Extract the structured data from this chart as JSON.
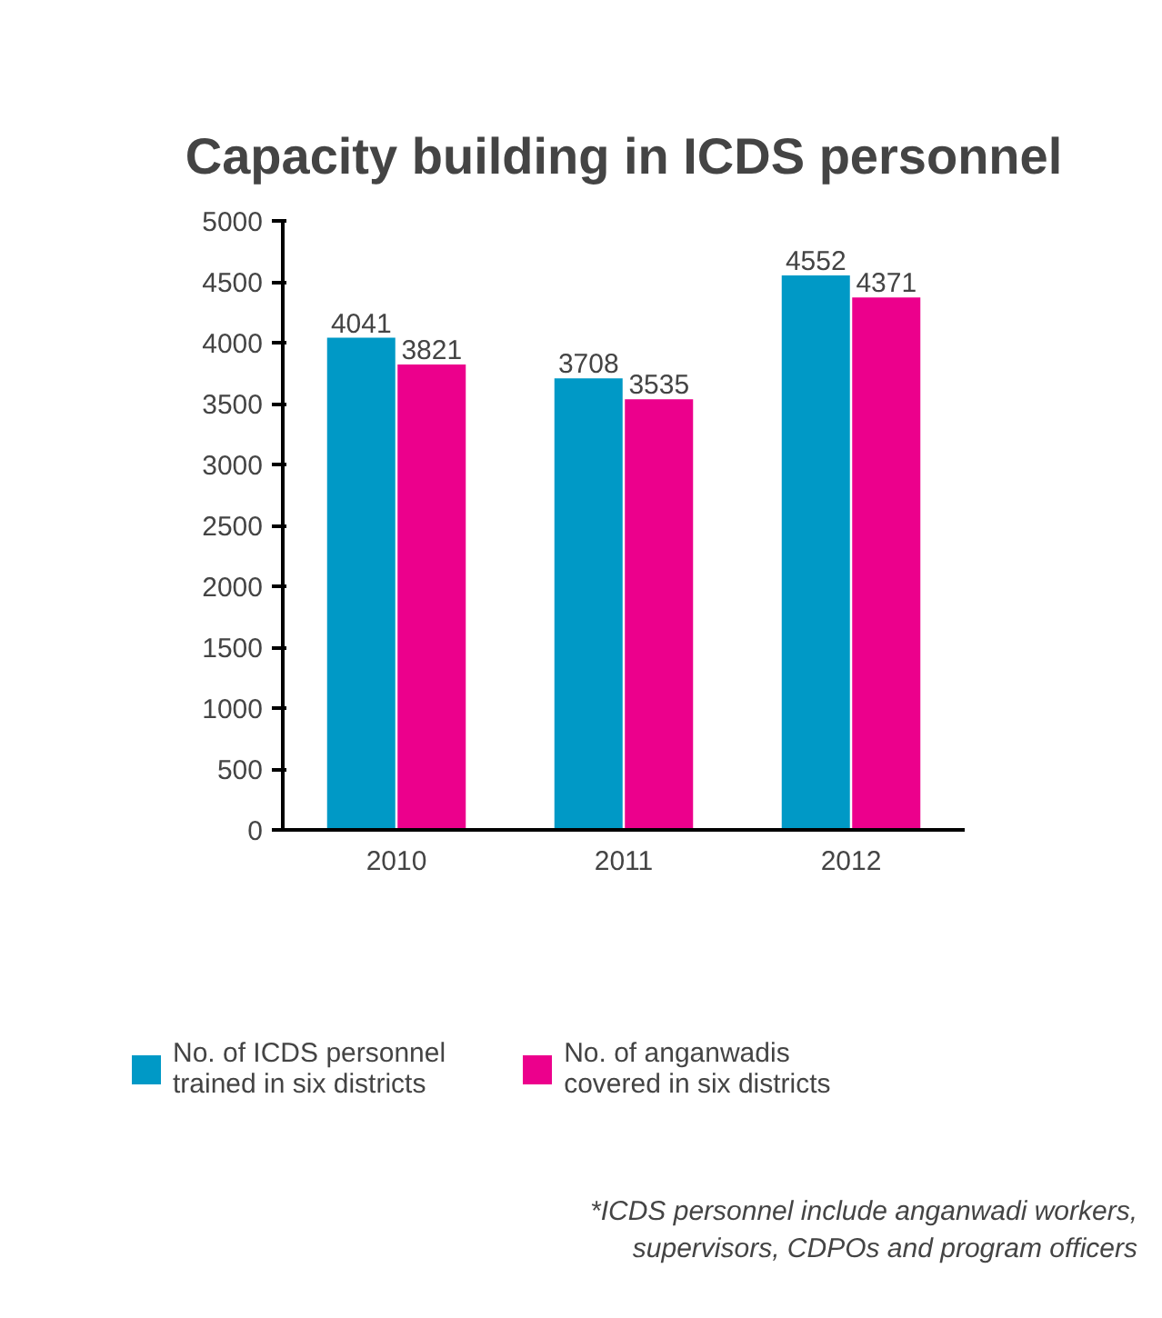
{
  "chart_data": {
    "type": "bar",
    "title": "Capacity building in ICDS personnel",
    "categories": [
      "2010",
      "2011",
      "2012"
    ],
    "series": [
      {
        "name": "No. of ICDS personnel trained in six districts",
        "color": "#0099c6",
        "values": [
          4041,
          3708,
          4552
        ]
      },
      {
        "name": "No. of anganwadis covered in six districts",
        "color": "#ec008c",
        "values": [
          3821,
          3535,
          4371
        ]
      }
    ],
    "ylim": [
      0,
      5000
    ],
    "yticks": [
      0,
      500,
      1000,
      1500,
      2000,
      2500,
      3000,
      3500,
      4000,
      4500,
      5000
    ],
    "data_labels": true,
    "grid": false,
    "legend": "bottom",
    "annotations": [
      "*ICDS personnel include anganwadi workers, supervisors, CDPOs and program officers"
    ]
  }
}
